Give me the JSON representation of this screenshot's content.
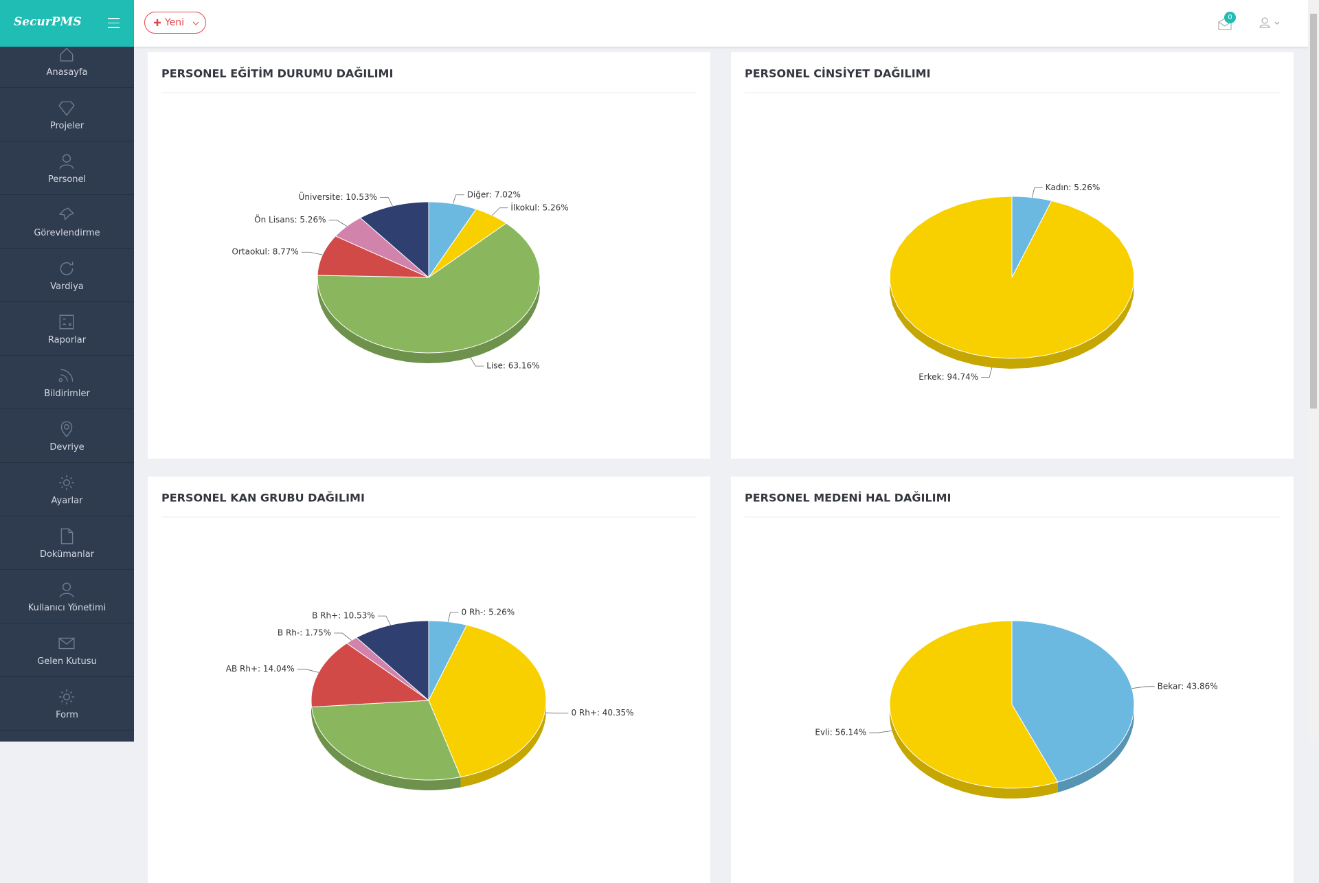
{
  "app": {
    "logo": "SecurPMS",
    "new_button": "Yeni",
    "mail_badge": "0"
  },
  "sidebar": {
    "items": [
      "Anasayfa",
      "Projeler",
      "Personel",
      "Görevlendirme",
      "Vardiya",
      "Raporlar",
      "Bildirimler",
      "Devriye",
      "Ayarlar",
      "Dokümanlar",
      "Kullanıcı Yönetimi",
      "Gelen Kutusu",
      "Form"
    ]
  },
  "chart_data": [
    {
      "type": "pie",
      "title": "PERSONEL EĞİTİM DURUMU DAĞILIMI",
      "values": [
        7.02,
        5.26,
        63.16,
        8.77,
        5.26,
        10.53
      ],
      "value_labels": [
        "Diğer: 7.02%",
        "İlkokul: 5.26%",
        "Lise: 63.16%",
        "Ortaokul: 8.77%",
        "Ön Lisans: 5.26%",
        "Üniversite: 10.53%"
      ],
      "colors": [
        "#6bb9e0",
        "#f8d000",
        "#8ab75e",
        "#d14a48",
        "#d283ab",
        "#2e3f70"
      ]
    },
    {
      "type": "pie",
      "title": "PERSONEL CİNSİYET DAĞILIMI",
      "values": [
        5.26,
        94.74
      ],
      "value_labels": [
        "Kadın: 5.26%",
        "Erkek: 94.74%"
      ],
      "colors": [
        "#6bb9e0",
        "#f8d000"
      ]
    },
    {
      "type": "pie",
      "title": "PERSONEL KAN GRUBU DAĞILIMI",
      "values": [
        5.26,
        40.35,
        28.07,
        14.04,
        1.75,
        10.53
      ],
      "value_labels": [
        "0 Rh-: 5.26%",
        "0 Rh+: 40.35%",
        null,
        "AB Rh+: 14.04%",
        "B Rh-: 1.75%",
        "B Rh+: 10.53%"
      ],
      "colors": [
        "#6bb9e0",
        "#f8d000",
        "#8ab75e",
        "#d14a48",
        "#d283ab",
        "#2e3f70"
      ]
    },
    {
      "type": "pie",
      "title": "PERSONEL MEDENİ HAL DAĞILIMI",
      "values": [
        43.86,
        56.14
      ],
      "value_labels": [
        "Bekar: 43.86%",
        "Evli: 56.14%"
      ],
      "colors": [
        "#6bb9e0",
        "#f8d000"
      ]
    }
  ]
}
